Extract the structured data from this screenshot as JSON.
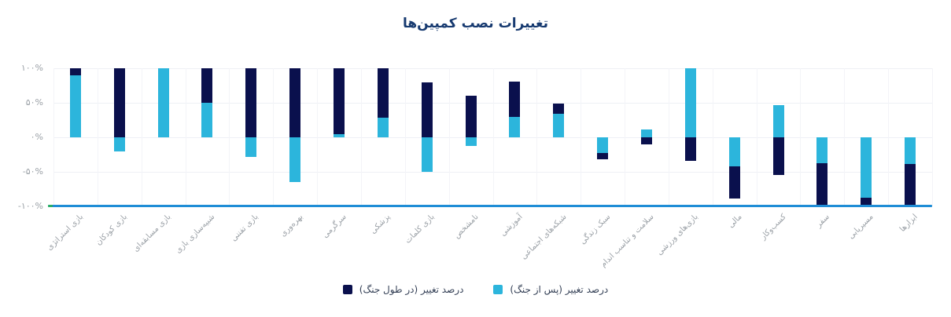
{
  "title": "تغییرات نصب کمپین‌ها",
  "colors": {
    "navy": "#0a104d",
    "cyan": "#2cb5dc",
    "axis_line": "#1f8dd6",
    "axis_line_tip": "#2bae66",
    "grid_h": "#eef0f5",
    "grid_v": "#f3f4f8",
    "tick_text": "#9aa0a6",
    "title_text": "#173a70",
    "legend_text": "#333f55"
  },
  "y_axis": {
    "ticks": [
      "۱۰۰%",
      "۵۰%",
      "۰%",
      "-۵۰%",
      "-۱۰۰%"
    ],
    "values": [
      100,
      50,
      0,
      -50,
      -100
    ]
  },
  "legend": {
    "items": [
      {
        "id": "during",
        "label": "درصد تغییر (در طول جنگ)",
        "color_key": "navy"
      },
      {
        "id": "after",
        "label": "درصد تغییر (پس از جنگ)",
        "color_key": "cyan"
      }
    ]
  },
  "chart_data": {
    "type": "bar",
    "stacked": true,
    "title": "تغییرات نصب کمپین‌ها",
    "xlabel": "",
    "ylabel": "",
    "ylim": [
      -100,
      100
    ],
    "grid": true,
    "legend_position": "bottom",
    "categories": [
      "بازی استراتژی",
      "بازی کودکان",
      "بازی مسابقه‌ای",
      "شبیه‌سازی بازی",
      "بازی تفننی",
      "بهره‌وری",
      "سرگرمی",
      "پزشکی",
      "بازی کلمات",
      "نامشخص",
      "آموزشی",
      "شبکه‌های اجتماعی",
      "سبک زندگی",
      "سلامت و تناسب اندام",
      "بازی‌های ورزشی",
      "مالی",
      "کسب‌وکار",
      "سفر",
      "مسیریابی",
      "ابزارها"
    ],
    "series": [
      {
        "id": "after",
        "name": "درصد تغییر (پس از جنگ)",
        "color_key": "cyan",
        "values": [
          90,
          -20,
          100,
          50,
          -28,
          -65,
          5,
          28,
          -50,
          -13,
          30,
          34,
          -23,
          11,
          100,
          -42,
          47,
          -38,
          -87,
          -39
        ]
      },
      {
        "id": "during",
        "name": "درصد تغییر (در طول جنگ)",
        "color_key": "navy",
        "values": [
          10,
          100,
          0,
          50,
          100,
          100,
          95,
          72,
          80,
          60,
          51,
          15,
          -9,
          -10,
          -34,
          -47,
          -55,
          -62,
          -13,
          -61
        ]
      }
    ]
  }
}
